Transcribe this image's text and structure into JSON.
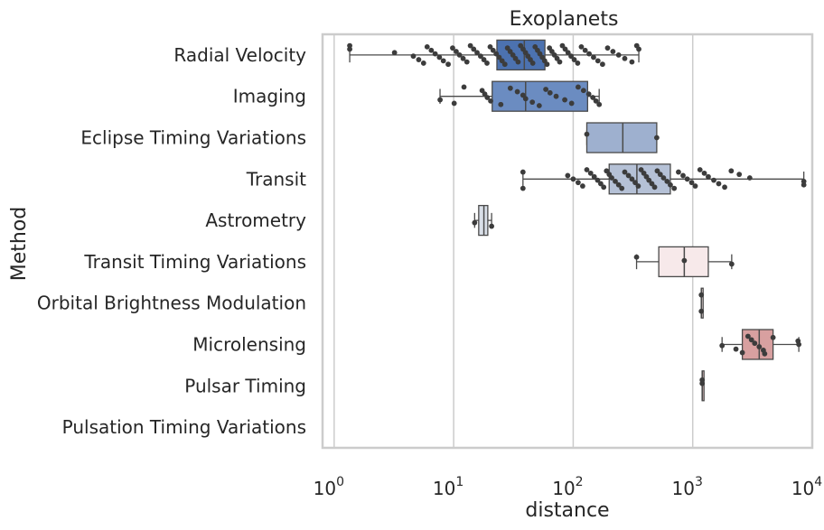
{
  "chart_data": {
    "type": "boxplot",
    "title": "Exoplanets",
    "xlabel": "distance",
    "ylabel": "Method",
    "xscale": "log",
    "xlim": [
      0.8,
      10000
    ],
    "xticks": [
      {
        "base": "10",
        "exp": "0"
      },
      {
        "base": "10",
        "exp": "1"
      },
      {
        "base": "10",
        "exp": "2"
      },
      {
        "base": "10",
        "exp": "3"
      },
      {
        "base": "10",
        "exp": "4"
      }
    ],
    "grid": "x",
    "categories": [
      {
        "name": "Radial Velocity",
        "box": {
          "whislo": 1.35,
          "q1": 23,
          "med": 39,
          "q3": 58,
          "whishi": 354
        },
        "color": "#4c72b0",
        "points": [
          1.35,
          1.35,
          3.2,
          4.6,
          5.1,
          5.6,
          6.0,
          6.5,
          7.0,
          7.6,
          8.2,
          9.0,
          9.8,
          10.5,
          11.2,
          12.0,
          12.9,
          13.8,
          14.7,
          15.7,
          16.8,
          17.9,
          19.0,
          20.2,
          21.4,
          22.7,
          24.0,
          25.4,
          26.8,
          28.2,
          29.7,
          31.3,
          32.9,
          34.6,
          36.3,
          38.1,
          39.9,
          41.8,
          43.8,
          45.9,
          48.0,
          50.3,
          52.6,
          55.1,
          57.7,
          60.4,
          63.3,
          66.4,
          69.7,
          73.3,
          77.1,
          81.2,
          85.7,
          90.6,
          96.0,
          102,
          109,
          117,
          126,
          136,
          148,
          161,
          176,
          194,
          215,
          240,
          270,
          310,
          340,
          354
        ]
      },
      {
        "name": "Imaging",
        "box": {
          "whislo": 7.69,
          "q1": 21,
          "med": 40,
          "q3": 132,
          "whishi": 165
        },
        "color": "#6b8cc1",
        "points": [
          7.7,
          10.1,
          12.2,
          17.3,
          18.2,
          19.1,
          20.4,
          24.8,
          29.8,
          34.1,
          38.0,
          40.0,
          45.5,
          52.0,
          59.0,
          64.0,
          72.0,
          85.0,
          97.0,
          110,
          122,
          135,
          146,
          155,
          165
        ]
      },
      {
        "name": "Eclipse Timing Variations",
        "box": {
          "whislo": 130,
          "q1": 130,
          "med": 260,
          "q3": 500,
          "whishi": 500
        },
        "color": "#9eb0cf",
        "points": [
          130,
          500
        ]
      },
      {
        "name": "Transit",
        "box": {
          "whislo": 38,
          "q1": 200,
          "med": 341,
          "q3": 650,
          "whishi": 8500
        },
        "color": "#b5c1d6",
        "points": [
          38,
          38,
          90,
          100,
          110,
          120,
          130,
          140,
          150,
          160,
          170,
          180,
          190,
          200,
          210,
          225,
          240,
          255,
          270,
          290,
          310,
          330,
          350,
          370,
          390,
          410,
          430,
          455,
          480,
          505,
          535,
          570,
          610,
          650,
          700,
          760,
          830,
          900,
          980,
          1050,
          1150,
          1250,
          1350,
          1500,
          1650,
          1850,
          2100,
          2450,
          3000,
          8500,
          8500
        ]
      },
      {
        "name": "Astrometry",
        "box": {
          "whislo": 14.98,
          "q1": 16.2,
          "med": 17.9,
          "q3": 19.3,
          "whishi": 20.77
        },
        "color": "#d9dfe8",
        "points": [
          14.98,
          20.77
        ]
      },
      {
        "name": "Transit Timing Variations",
        "box": {
          "whislo": 339,
          "q1": 520,
          "med": 850,
          "q3": 1350,
          "whishi": 2119
        },
        "color": "#f7e9ea",
        "points": [
          339,
          850,
          2119
        ]
      },
      {
        "name": "Orbital Brightness Modulation",
        "box": {
          "whislo": 1180,
          "q1": 1180,
          "med": 1180,
          "q3": 1180,
          "whishi": 1180
        },
        "color": "#f1dedf",
        "points": [
          1180,
          1180
        ]
      },
      {
        "name": "Microlensing",
        "box": {
          "whislo": 1760,
          "q1": 2600,
          "med": 3600,
          "q3": 4700,
          "whishi": 7720
        },
        "color": "#d8a0a0",
        "points": [
          1760,
          2300,
          2600,
          2900,
          3100,
          3300,
          3600,
          3900,
          4000,
          4700,
          7600,
          7720
        ]
      },
      {
        "name": "Pulsar Timing",
        "box": {
          "whislo": 1200,
          "q1": 1200,
          "med": 1200,
          "q3": 1200,
          "whishi": 1200
        },
        "color": "#e8c7c8",
        "points": [
          1200,
          1200
        ]
      },
      {
        "name": "Pulsation Timing Variations",
        "box": null,
        "color": "#f0dcdd",
        "points": []
      }
    ]
  }
}
